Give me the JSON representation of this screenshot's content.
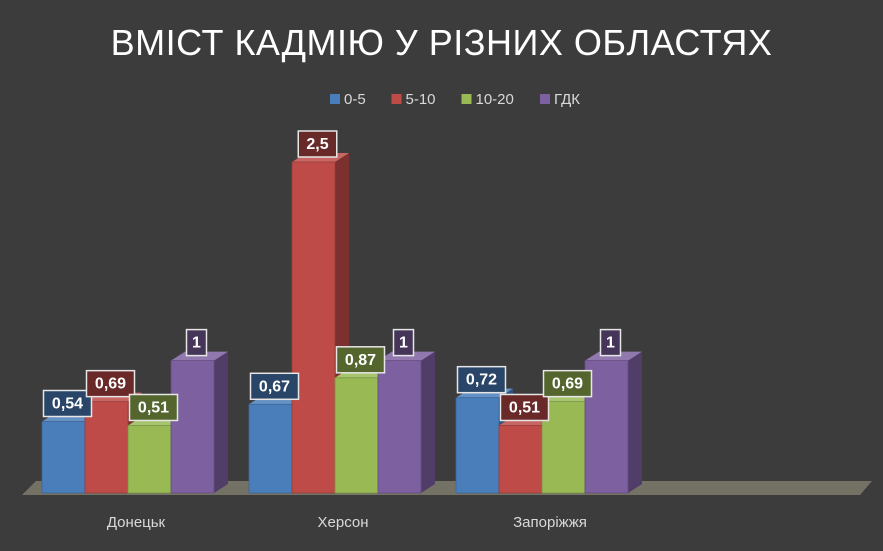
{
  "chart_data": {
    "type": "bar",
    "title": "ВМІСТ КАДМІЮ У РІЗНИХ ОБЛАСТЯХ",
    "categories": [
      "Донецьк",
      "Херсон",
      "Запоріжжя"
    ],
    "series": [
      {
        "name": "0-5",
        "values": [
          0.54,
          0.67,
          0.72
        ],
        "labels": [
          "0,54",
          "0,67",
          "0,72"
        ],
        "color": "#4a7ebb"
      },
      {
        "name": "5-10",
        "values": [
          0.69,
          2.5,
          0.51
        ],
        "labels": [
          "0,69",
          "2,5",
          "0,51"
        ],
        "color": "#be4b48"
      },
      {
        "name": "10-20",
        "values": [
          0.51,
          0.87,
          0.69
        ],
        "labels": [
          "0,51",
          "0,87",
          "0,69"
        ],
        "color": "#98b954"
      },
      {
        "name": "ГДК",
        "values": [
          1,
          1,
          1
        ],
        "labels": [
          "1",
          "1",
          "1"
        ],
        "color": "#7d60a0"
      }
    ],
    "ylim": [
      0,
      2.5
    ],
    "legend_position": "top",
    "grid": false,
    "style": "3d-clustered-column"
  }
}
